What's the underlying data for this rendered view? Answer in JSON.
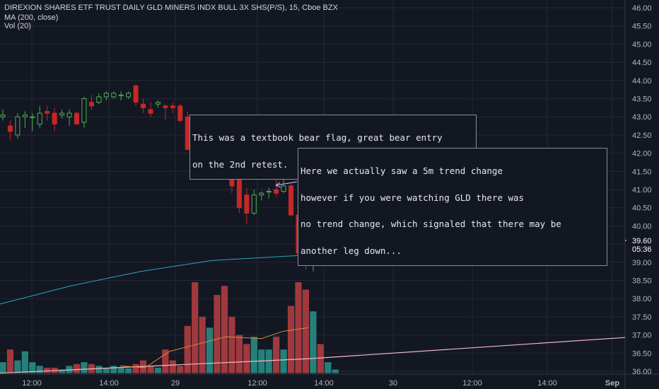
{
  "header": {
    "symbol_line": "DIREXION SHARES ETF TRUST DAILY GLD MINERS INDX BULL 3X SHS(P/S), 15, Cboe BZX",
    "ma_label": "MA (200, close)",
    "vol_label": "Vol (20)"
  },
  "annotations": {
    "bear_flag": [
      "This was a textbook bear flag, great bear entry",
      "on the 2nd retest."
    ],
    "trend_change": [
      "Here we actually saw a 5m trend change",
      "however if you were watching GLD there was",
      "no trend change, which signaled that there may be",
      "another leg down..."
    ]
  },
  "price_badge": "39.60",
  "countdown_badge": "05:36",
  "colors": {
    "background": "#131722",
    "up": "#4caf50",
    "down": "#c62828",
    "vol_up": "#26807a",
    "vol_down": "#a0393e",
    "ma200": "#2ea3c6",
    "vol_ma": "#d98c3f",
    "long_trend": "#f2b8c0",
    "grid": "#232834"
  },
  "chart_data": {
    "type": "candlestick",
    "title": "DIREXION SHARES ETF TRUST DAILY GLD MINERS INDX BULL 3X SHS(P/S), 15, Cboe BZX",
    "y_axis": {
      "range": [
        35.95,
        46.1
      ],
      "ticks": [
        "46.00",
        "45.50",
        "45.00",
        "44.50",
        "44.00",
        "43.50",
        "43.00",
        "42.50",
        "42.00",
        "41.50",
        "41.00",
        "40.50",
        "40.00",
        "39.50",
        "39.00",
        "38.50",
        "38.00",
        "37.50",
        "37.00",
        "36.50",
        "36.00"
      ]
    },
    "x_axis": {
      "ticks": [
        "12:00",
        "14:00",
        "29",
        "12:00",
        "14:00",
        "30",
        "12:00",
        "14:00",
        "Sep"
      ]
    },
    "candles": [
      {
        "o": 43.0,
        "h": 43.2,
        "l": 42.9,
        "c": 43.05,
        "v": 36.25
      },
      {
        "o": 42.75,
        "h": 42.9,
        "l": 42.35,
        "c": 42.6,
        "v": 36.6
      },
      {
        "o": 42.5,
        "h": 43.1,
        "l": 42.4,
        "c": 43.0,
        "v": 36.3
      },
      {
        "o": 43.0,
        "h": 43.15,
        "l": 42.7,
        "c": 43.05,
        "v": 36.55
      },
      {
        "o": 43.0,
        "h": 43.1,
        "l": 42.6,
        "c": 43.0,
        "v": 36.25
      },
      {
        "o": 42.8,
        "h": 43.3,
        "l": 42.7,
        "c": 43.1,
        "v": 36.15
      },
      {
        "o": 43.15,
        "h": 43.3,
        "l": 42.9,
        "c": 43.1,
        "v": 36.1
      },
      {
        "o": 43.1,
        "h": 43.25,
        "l": 42.6,
        "c": 42.8,
        "v": 36.1
      },
      {
        "o": 43.05,
        "h": 43.2,
        "l": 42.95,
        "c": 43.1,
        "v": 36.05
      },
      {
        "o": 43.0,
        "h": 43.2,
        "l": 42.75,
        "c": 43.1,
        "v": 36.15
      },
      {
        "o": 43.1,
        "h": 43.15,
        "l": 42.8,
        "c": 42.8,
        "v": 36.2
      },
      {
        "o": 42.85,
        "h": 43.55,
        "l": 42.7,
        "c": 43.5,
        "v": 36.25
      },
      {
        "o": 43.4,
        "h": 43.6,
        "l": 43.2,
        "c": 43.3,
        "v": 36.2
      },
      {
        "o": 43.4,
        "h": 43.65,
        "l": 43.35,
        "c": 43.55,
        "v": 36.15
      },
      {
        "o": 43.55,
        "h": 43.7,
        "l": 43.45,
        "c": 43.65,
        "v": 36.1
      },
      {
        "o": 43.55,
        "h": 43.7,
        "l": 43.5,
        "c": 43.65,
        "v": 36.15
      },
      {
        "o": 43.6,
        "h": 43.7,
        "l": 43.45,
        "c": 43.6,
        "v": 36.1
      },
      {
        "o": 43.55,
        "h": 43.7,
        "l": 43.5,
        "c": 43.65,
        "v": 36.08
      },
      {
        "o": 43.85,
        "h": 43.9,
        "l": 43.3,
        "c": 43.4,
        "v": 36.2
      },
      {
        "o": 43.35,
        "h": 43.5,
        "l": 43.1,
        "c": 43.25,
        "v": 36.3
      },
      {
        "o": 43.2,
        "h": 43.4,
        "l": 43.0,
        "c": 43.1,
        "v": 36.15
      },
      {
        "o": 43.35,
        "h": 43.45,
        "l": 43.25,
        "c": 43.4,
        "v": 36.1
      },
      {
        "o": 43.3,
        "h": 43.35,
        "l": 42.9,
        "c": 43.25,
        "v": 36.6
      },
      {
        "o": 43.3,
        "h": 43.4,
        "l": 43.1,
        "c": 43.25,
        "v": 36.3
      },
      {
        "o": 43.3,
        "h": 43.35,
        "l": 42.85,
        "c": 42.9,
        "v": 36.15
      },
      {
        "o": 43.0,
        "h": 43.15,
        "l": 42.1,
        "c": 42.1,
        "v": 37.25
      },
      {
        "o": 42.2,
        "h": 42.3,
        "l": 41.6,
        "c": 42.1,
        "v": 38.45
      },
      {
        "o": 42.1,
        "h": 42.3,
        "l": 41.45,
        "c": 41.5,
        "v": 37.5
      },
      {
        "o": 41.8,
        "h": 42.25,
        "l": 41.6,
        "c": 42.0,
        "v": 37.2
      },
      {
        "o": 42.0,
        "h": 42.2,
        "l": 41.6,
        "c": 41.7,
        "v": 38.1
      },
      {
        "o": 41.9,
        "h": 42.2,
        "l": 41.5,
        "c": 41.5,
        "v": 38.35
      },
      {
        "o": 41.8,
        "h": 41.85,
        "l": 40.9,
        "c": 41.1,
        "v": 37.5
      },
      {
        "o": 41.3,
        "h": 41.4,
        "l": 40.35,
        "c": 40.5,
        "v": 37.0
      },
      {
        "o": 40.85,
        "h": 41.05,
        "l": 40.05,
        "c": 40.35,
        "v": 36.75
      },
      {
        "o": 40.35,
        "h": 41.0,
        "l": 40.3,
        "c": 40.85,
        "v": 36.95
      },
      {
        "o": 40.85,
        "h": 40.95,
        "l": 40.7,
        "c": 40.9,
        "v": 36.6
      },
      {
        "o": 40.95,
        "h": 41.05,
        "l": 40.75,
        "c": 40.95,
        "v": 36.6
      },
      {
        "o": 41.0,
        "h": 41.3,
        "l": 40.8,
        "c": 40.9,
        "v": 36.95
      },
      {
        "o": 40.95,
        "h": 41.5,
        "l": 40.9,
        "c": 41.1,
        "v": 36.6
      },
      {
        "o": 41.1,
        "h": 41.15,
        "l": 40.25,
        "c": 40.3,
        "v": 37.8
      },
      {
        "o": 40.3,
        "h": 40.35,
        "l": 39.2,
        "c": 39.25,
        "v": 38.45
      },
      {
        "o": 39.25,
        "h": 39.4,
        "l": 38.8,
        "c": 39.1,
        "v": 38.25
      },
      {
        "o": 39.1,
        "h": 39.3,
        "l": 38.75,
        "c": 39.25,
        "v": 37.65
      },
      {
        "o": 39.25,
        "h": 39.4,
        "l": 39.0,
        "c": 39.2,
        "v": 36.75
      },
      {
        "o": 39.2,
        "h": 39.55,
        "l": 39.1,
        "c": 39.5,
        "v": 36.25
      },
      {
        "o": 39.6,
        "h": 39.8,
        "l": 39.55,
        "c": 39.6,
        "v": 36.05
      }
    ],
    "ma200": [
      {
        "x": 0,
        "y": 37.85
      },
      {
        "x": 100,
        "y": 38.35
      },
      {
        "x": 200,
        "y": 38.75
      },
      {
        "x": 300,
        "y": 39.05
      },
      {
        "x": 436,
        "y": 39.2
      }
    ],
    "vol_ma": [
      {
        "x": 170,
        "y": 36.15
      },
      {
        "x": 205,
        "y": 36.1
      },
      {
        "x": 240,
        "y": 36.55
      },
      {
        "x": 280,
        "y": 36.75
      },
      {
        "x": 320,
        "y": 36.95
      },
      {
        "x": 370,
        "y": 36.9
      },
      {
        "x": 400,
        "y": 37.1
      },
      {
        "x": 436,
        "y": 37.2
      }
    ],
    "long_trend": [
      {
        "x": 0,
        "y": 35.95
      },
      {
        "x": 440,
        "y": 36.35
      },
      {
        "x": 884,
        "y": 36.93
      }
    ],
    "markers": {
      "last_price": 39.6
    }
  }
}
